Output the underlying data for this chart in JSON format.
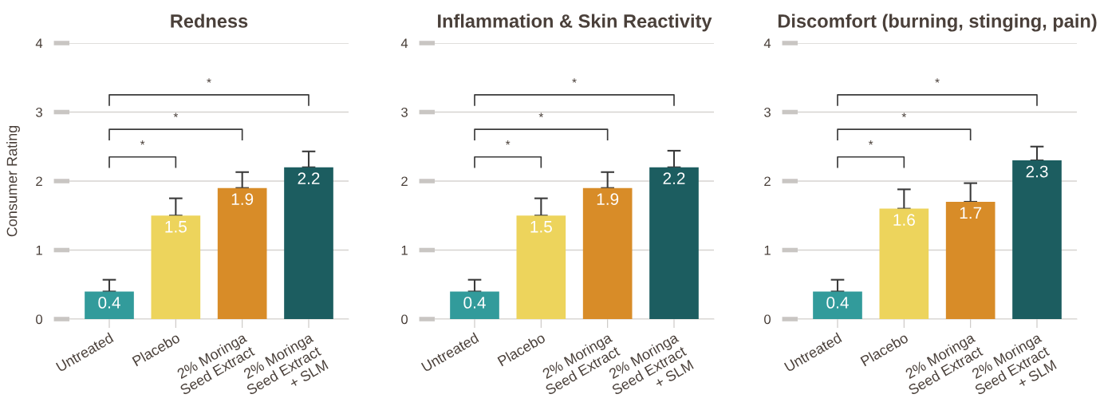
{
  "chart_data": [
    {
      "type": "bar",
      "title": "Redness",
      "ylabel": "Consumer Rating",
      "categories": [
        "Untreated",
        "Placebo",
        "2% Moringa\nSeed Extract",
        "2% Moringa\nSeed Extract\n+ SLM"
      ],
      "values": [
        0.4,
        1.5,
        1.9,
        2.2
      ],
      "colors": [
        "#329b9b",
        "#edd45c",
        "#d88c28",
        "#1c5d60"
      ],
      "errors": [
        [
          0.4,
          0.57
        ],
        [
          1.5,
          1.75
        ],
        [
          1.9,
          2.13
        ],
        [
          2.2,
          2.43
        ]
      ],
      "data_labels": true,
      "ylim": [
        0,
        4
      ],
      "yticks": [
        0,
        1,
        2,
        3,
        4
      ],
      "grid": "y",
      "annotations": [
        "*",
        "*",
        "*"
      ]
    },
    {
      "type": "bar",
      "title": "Inflammation & Skin Reactivity",
      "categories": [
        "Untreated",
        "Placebo",
        "2% Moringa\nSeed Extract",
        "2% Moringa\nSeed Extract\n+ SLM"
      ],
      "values": [
        0.4,
        1.5,
        1.9,
        2.2
      ],
      "colors": [
        "#329b9b",
        "#edd45c",
        "#d88c28",
        "#1c5d60"
      ],
      "errors": [
        [
          0.4,
          0.57
        ],
        [
          1.5,
          1.75
        ],
        [
          1.9,
          2.13
        ],
        [
          2.2,
          2.44
        ]
      ],
      "data_labels": true,
      "ylim": [
        0,
        4
      ],
      "yticks": [
        0,
        1,
        2,
        3,
        4
      ],
      "grid": "y",
      "annotations": [
        "*",
        "*",
        "*"
      ]
    },
    {
      "type": "bar",
      "title": "Discomfort (burning, stinging, pain)",
      "categories": [
        "Untreated",
        "Placebo",
        "2% Moringa\nSeed Extract",
        "2% Moringa\nSeed Extract\n+ SLM"
      ],
      "values": [
        0.4,
        1.6,
        1.7,
        2.3
      ],
      "colors": [
        "#329b9b",
        "#edd45c",
        "#d88c28",
        "#1c5d60"
      ],
      "errors": [
        [
          0.4,
          0.57
        ],
        [
          1.6,
          1.88
        ],
        [
          1.7,
          1.97
        ],
        [
          2.3,
          2.5
        ]
      ],
      "data_labels": true,
      "ylim": [
        0,
        4
      ],
      "yticks": [
        0,
        1,
        2,
        3,
        4
      ],
      "grid": "y",
      "annotations": [
        "*",
        "*",
        "*"
      ]
    }
  ]
}
